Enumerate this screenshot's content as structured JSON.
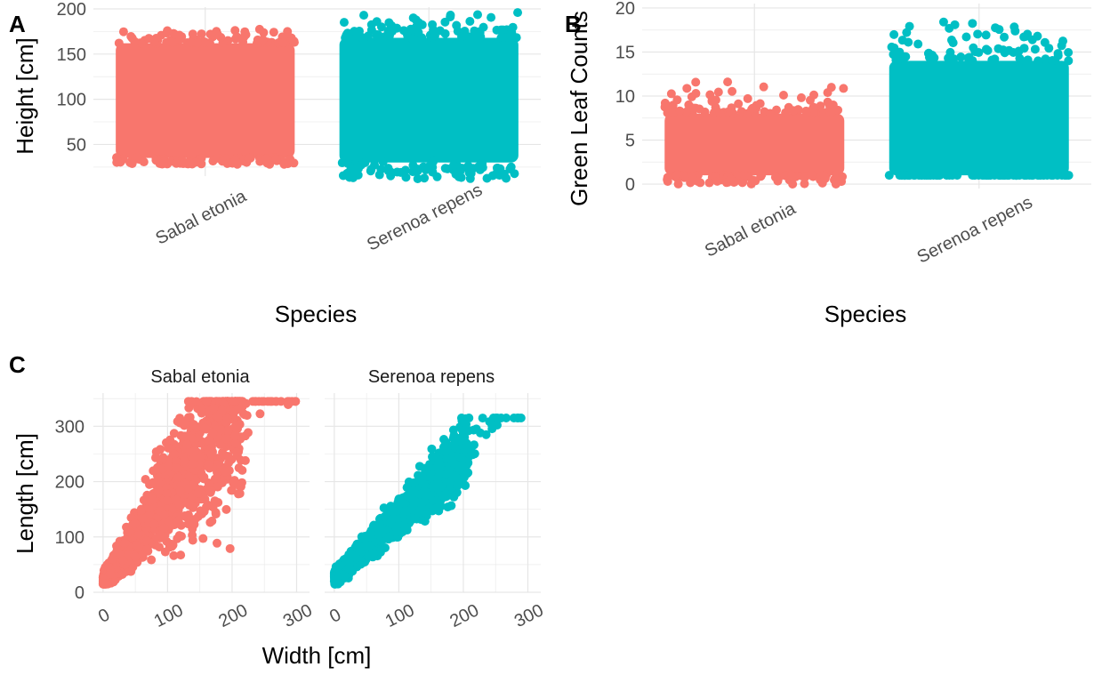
{
  "colors": {
    "sabal": "#F8766D",
    "serenoa": "#00BFC4",
    "grid": "#EBEBEB",
    "text": "#4D4D4D"
  },
  "panels": {
    "a": {
      "tag": "A"
    },
    "b": {
      "tag": "B"
    },
    "c": {
      "tag": "C"
    }
  },
  "chart_data": [
    {
      "panel": "A",
      "type": "scatter",
      "subtype": "jitter",
      "title": "",
      "xlabel": "Species",
      "ylabel": "Height [cm]",
      "categories": [
        "Sabal etonia",
        "Serenoa repens"
      ],
      "ylim": [
        15,
        202
      ],
      "yticks": [
        50,
        100,
        150,
        200
      ],
      "tick_labels": [
        "50",
        "100",
        "150",
        "200"
      ],
      "grid": true,
      "series": [
        {
          "category": "Sabal etonia",
          "color": "#F8766D",
          "range": [
            28,
            182
          ],
          "bulk_range": [
            35,
            162
          ]
        },
        {
          "category": "Serenoa repens",
          "color": "#00BFC4",
          "range": [
            12,
            198
          ],
          "bulk_range": [
            30,
            168
          ]
        }
      ]
    },
    {
      "panel": "B",
      "type": "scatter",
      "subtype": "jitter",
      "title": "",
      "xlabel": "Species",
      "ylabel": "Green Leaf Counts",
      "categories": [
        "Sabal etonia",
        "Serenoa repens"
      ],
      "ylim": [
        -0.5,
        20.5
      ],
      "yticks": [
        0,
        5,
        10,
        15,
        20
      ],
      "tick_labels": [
        "0",
        "5",
        "10",
        "15",
        "20"
      ],
      "grid": true,
      "series": [
        {
          "category": "Sabal etonia",
          "color": "#F8766D",
          "range": [
            0,
            12
          ],
          "bulk_range": [
            1,
            8
          ]
        },
        {
          "category": "Serenoa repens",
          "color": "#00BFC4",
          "range": [
            1,
            19
          ],
          "bulk_range": [
            1,
            14
          ]
        }
      ]
    },
    {
      "panel": "C",
      "type": "scatter",
      "title": "",
      "xlabel": "Width [cm]",
      "ylabel": "Length [cm]",
      "facets": [
        "Sabal etonia",
        "Serenoa repens"
      ],
      "xlim": [
        -15,
        320
      ],
      "ylim": [
        0,
        360
      ],
      "xticks": [
        0,
        100,
        200,
        300
      ],
      "xtick_labels": [
        "0",
        "100",
        "200",
        "300"
      ],
      "yticks": [
        0,
        100,
        200,
        300
      ],
      "ytick_labels": [
        "0",
        "100",
        "200",
        "300"
      ],
      "grid": true,
      "series": [
        {
          "name": "Sabal etonia",
          "color": "#F8766D",
          "x_range": [
            0,
            300
          ],
          "y_range": [
            15,
            345
          ],
          "slope": 1.55,
          "intercept": 20
        },
        {
          "name": "Serenoa repens",
          "color": "#00BFC4",
          "x_range": [
            0,
            290
          ],
          "y_range": [
            15,
            315
          ],
          "slope": 1.15,
          "intercept": 25
        }
      ]
    }
  ]
}
